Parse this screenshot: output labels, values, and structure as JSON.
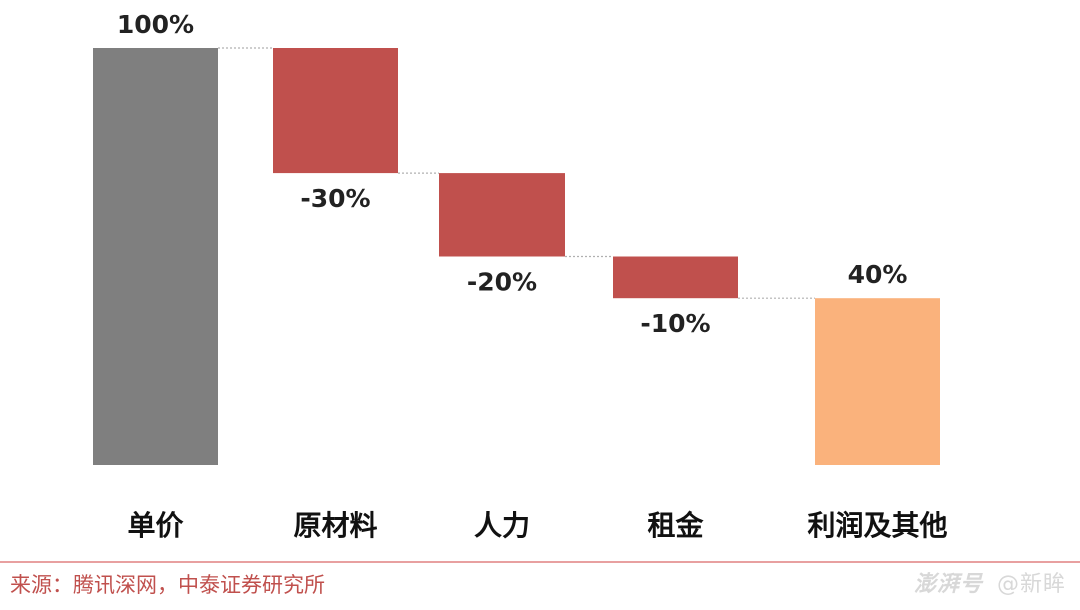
{
  "chart_data": {
    "type": "waterfall",
    "categories": [
      "单价",
      "原材料",
      "人力",
      "租金",
      "利润及其他"
    ],
    "values": [
      100,
      -30,
      -20,
      -10,
      40
    ],
    "value_labels": [
      "100%",
      "-30%",
      "-20%",
      "-10%",
      "40%"
    ],
    "kinds": [
      "total",
      "decrease",
      "decrease",
      "decrease",
      "total"
    ],
    "ylim": [
      0,
      100
    ],
    "grid": false,
    "legend": "none",
    "colors": {
      "total": "#7f7f7f",
      "decrease": "#c0504d",
      "final": "#fab27c",
      "connector": "#b0b0b0"
    }
  },
  "footer": {
    "source": "来源：腾讯深网，中泰证券研究所",
    "source_color": "#c0504d",
    "divider_color": "#e8a0a0"
  },
  "watermark": {
    "logo": "澎湃号",
    "author": "@新眸"
  }
}
